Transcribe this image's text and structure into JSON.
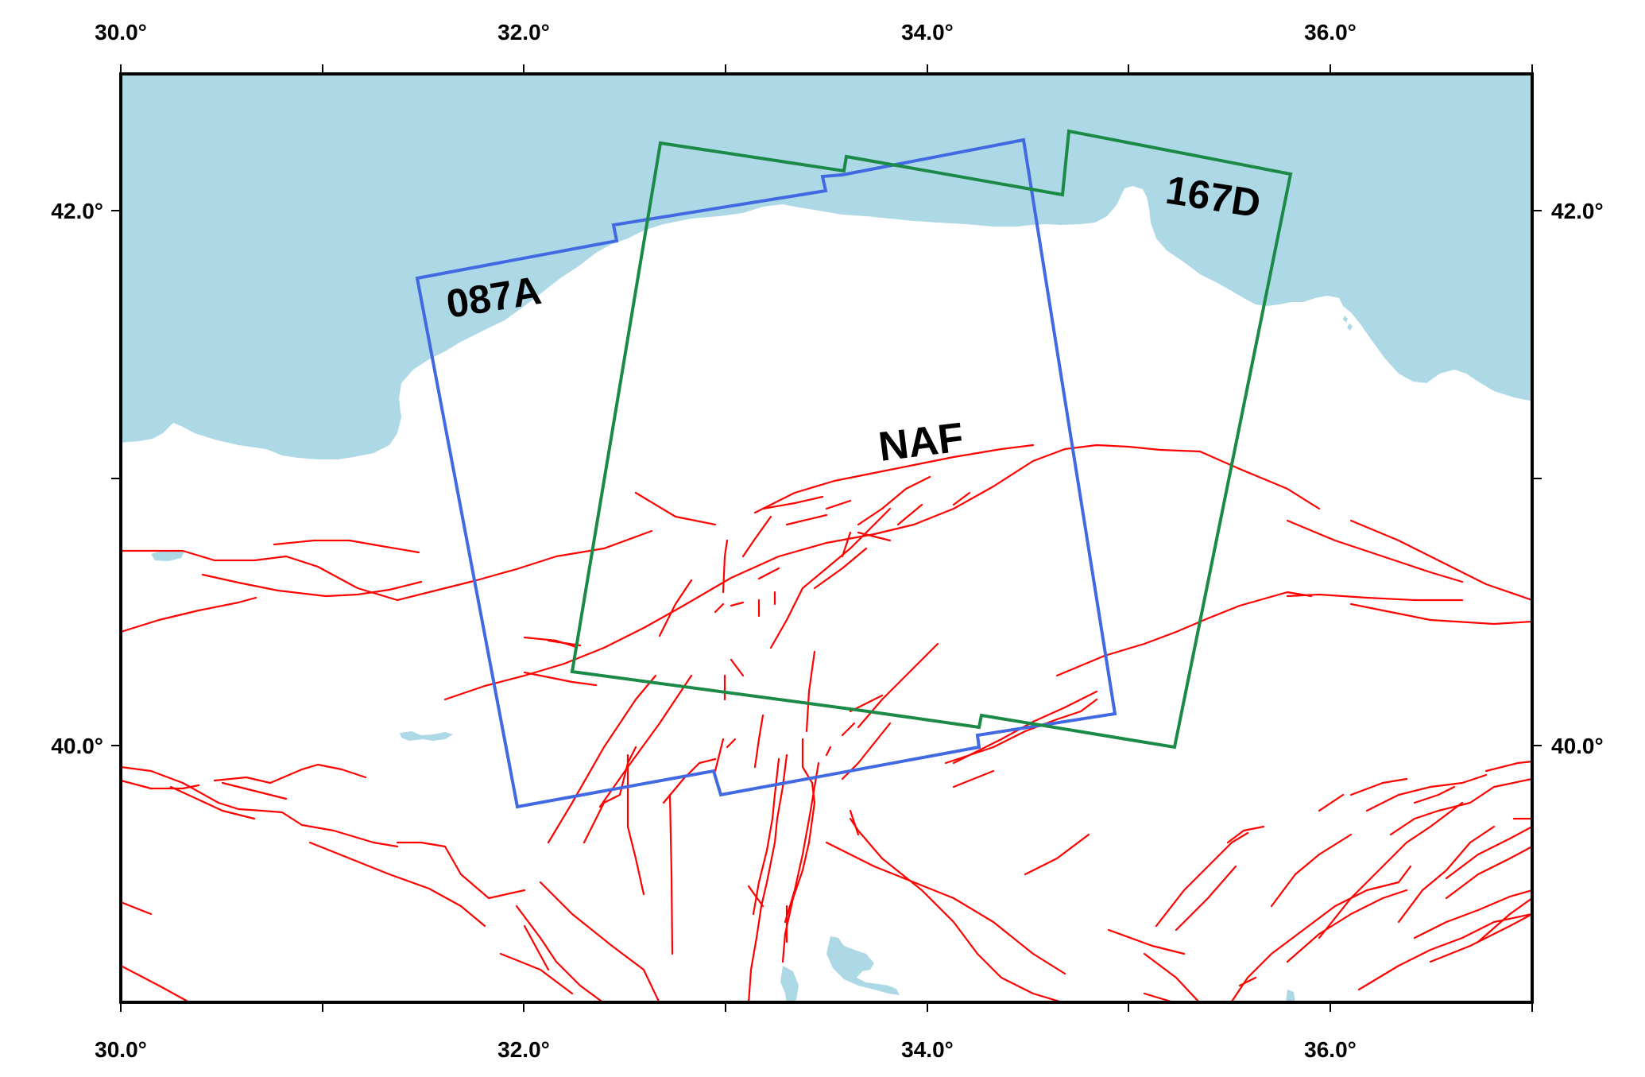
{
  "map": {
    "longitude_ticks": [
      "30.0°",
      "32.0°",
      "34.0°",
      "36.0°"
    ],
    "latitude_ticks": [
      "42.0°",
      "40.0°"
    ],
    "labels": {
      "track_ascending": "087A",
      "track_descending": "167D",
      "fault_zone": "NAF"
    },
    "colors": {
      "sea": "#add8e6",
      "faults": "#ff0000",
      "ascending_frame": "#4169e1",
      "descending_frame": "#1a8a46",
      "frame_border": "#000000"
    }
  }
}
